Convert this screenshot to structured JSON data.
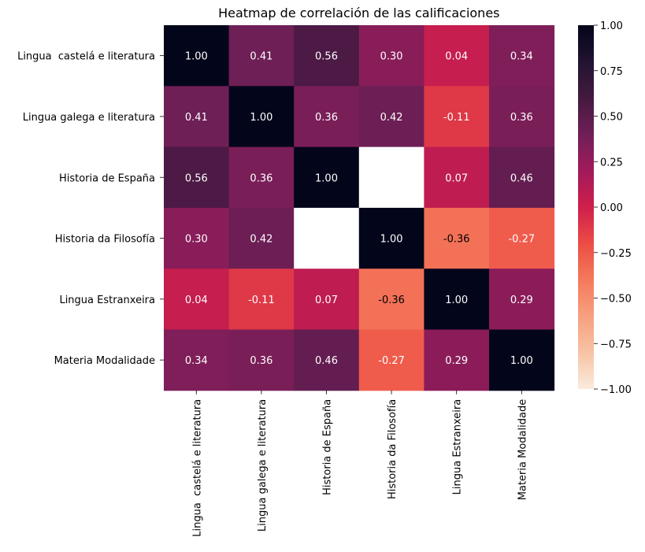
{
  "chart_data": {
    "type": "heatmap",
    "title": "Heatmap de correlación de las calificaciones",
    "row_labels": [
      "Lingua  castelá e literatura",
      "Lingua galega e literatura",
      "Historia de España",
      "Historia da Filosofía",
      "Lingua Estranxeira",
      "Materia Modalidade"
    ],
    "col_labels": [
      "Lingua  castelá e literatura",
      "Lingua galega e literatura",
      "Historia de España",
      "Historia da Filosofía",
      "Lingua Estranxeira",
      "Materia Modalidade"
    ],
    "values": [
      [
        1.0,
        0.41,
        0.56,
        0.3,
        0.04,
        0.34
      ],
      [
        0.41,
        1.0,
        0.36,
        0.42,
        -0.11,
        0.36
      ],
      [
        0.56,
        0.36,
        1.0,
        null,
        0.07,
        0.46
      ],
      [
        0.3,
        0.42,
        null,
        1.0,
        -0.36,
        -0.27
      ],
      [
        0.04,
        -0.11,
        0.07,
        -0.36,
        1.0,
        0.29
      ],
      [
        0.34,
        0.36,
        0.46,
        -0.27,
        0.29,
        1.0
      ]
    ],
    "value_range": [
      -1,
      1
    ],
    "colormap": "rocket_r",
    "colorbar_ticks": [
      "1.00",
      "0.75",
      "0.50",
      "0.25",
      "0.00",
      "−0.25",
      "−0.50",
      "−0.75",
      "−1.00"
    ],
    "colorbar_tick_values": [
      1.0,
      0.75,
      0.5,
      0.25,
      0.0,
      -0.25,
      -0.5,
      -0.75,
      -1.0
    ],
    "annotation_format": "2 decimals",
    "missing_color": "#ffffff"
  }
}
